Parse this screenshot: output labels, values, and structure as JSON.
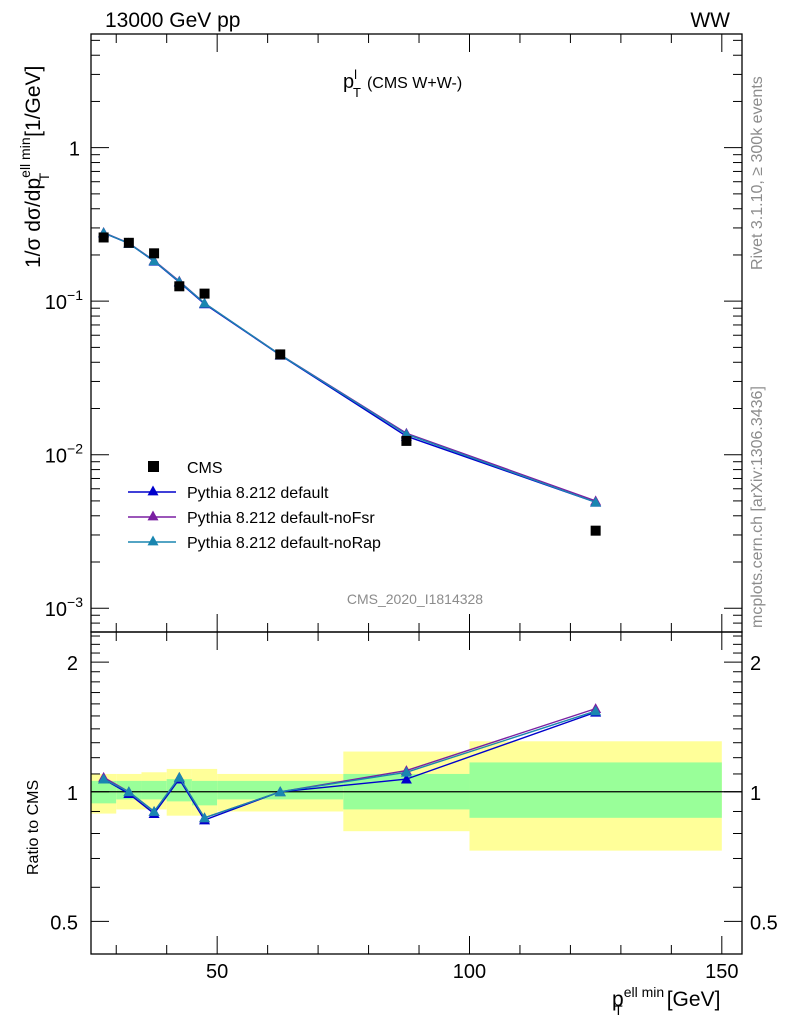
{
  "header": {
    "left": "13000 GeV pp",
    "right": "WW"
  },
  "side_labels": {
    "rivet": "Rivet 3.1.10, ≥ 300k events",
    "mcplots": "mcplots.cern.ch [arXiv:1306.3436]"
  },
  "watermark": "CMS_2020_I1814328",
  "main_title": {
    "p": "p",
    "sup": "l",
    "sub": "T",
    "rest": "(CMS W+W-)"
  },
  "y_label_top": {
    "part1": "1/σ dσ/dp",
    "sup": "ell min",
    "sub": "T",
    "units": "[1/GeV]"
  },
  "y_label_ratio": "Ratio to CMS",
  "x_label": {
    "p": "p",
    "sup": "ell min",
    "sub": "T",
    "units": "[GeV]"
  },
  "legend": [
    {
      "label": "CMS",
      "color": "#000000",
      "marker": "square"
    },
    {
      "label": "Pythia 8.212 default",
      "color": "#0000cc",
      "marker": "triangle"
    },
    {
      "label": "Pythia 8.212 default-noFsr",
      "color": "#7a1fa2",
      "marker": "triangle"
    },
    {
      "label": "Pythia 8.212 default-noRap",
      "color": "#1a86b0",
      "marker": "triangle"
    }
  ],
  "ticks": {
    "top_y": [
      {
        "value": 1,
        "label": "1"
      },
      {
        "value": 0.1,
        "label": "10",
        "exp": "−1"
      },
      {
        "value": 0.01,
        "label": "10",
        "exp": "−2"
      },
      {
        "value": 0.001,
        "label": "10",
        "exp": "−3"
      }
    ],
    "ratio_y": [
      {
        "value": 2,
        "label": "2"
      },
      {
        "value": 1,
        "label": "1"
      },
      {
        "value": 0.5,
        "label": "0.5"
      }
    ],
    "x": [
      {
        "value": 50,
        "label": "50"
      },
      {
        "value": 100,
        "label": "100"
      },
      {
        "value": 150,
        "label": "150"
      }
    ]
  },
  "chart_data": {
    "type": "scatter",
    "xlim": [
      25,
      154
    ],
    "ylim": [
      0.0007,
      5.5
    ],
    "ylog": true,
    "ratio_ylim": [
      0.42,
      2.35
    ],
    "ratio_ylog": true,
    "bins": [
      [
        25,
        30
      ],
      [
        30,
        35
      ],
      [
        35,
        40
      ],
      [
        40,
        45
      ],
      [
        45,
        50
      ],
      [
        50,
        75
      ],
      [
        75,
        100
      ],
      [
        100,
        150
      ]
    ],
    "x": [
      27.5,
      32.5,
      37.5,
      42.5,
      47.5,
      62.5,
      87.5,
      125
    ],
    "data": {
      "name": "CMS",
      "values": [
        0.26,
        0.24,
        0.205,
        0.125,
        0.112,
        0.045,
        0.0123,
        0.0032
      ]
    },
    "series": [
      {
        "name": "Pythia 8.212 default",
        "values": [
          0.278,
          0.238,
          0.182,
          0.133,
          0.096,
          0.0445,
          0.0132,
          0.0049
        ],
        "ratio": [
          1.07,
          0.99,
          0.89,
          1.07,
          0.86,
          1.0,
          1.07,
          1.53
        ]
      },
      {
        "name": "Pythia 8.212 default-noFsr",
        "values": [
          0.28,
          0.239,
          0.184,
          0.135,
          0.097,
          0.0448,
          0.0138,
          0.005
        ],
        "ratio": [
          1.08,
          1.0,
          0.9,
          1.08,
          0.87,
          1.0,
          1.12,
          1.56
        ]
      },
      {
        "name": "Pythia 8.212 default-noRap",
        "values": [
          0.279,
          0.238,
          0.183,
          0.134,
          0.097,
          0.0447,
          0.0136,
          0.0049
        ],
        "ratio": [
          1.07,
          1.0,
          0.9,
          1.08,
          0.87,
          1.0,
          1.11,
          1.54
        ]
      }
    ],
    "uncertainty_bands": {
      "inner": [
        [
          0.94,
          1.06
        ],
        [
          0.96,
          1.06
        ],
        [
          0.96,
          1.06
        ],
        [
          0.95,
          1.07
        ],
        [
          0.93,
          1.06
        ],
        [
          0.96,
          1.06
        ],
        [
          0.91,
          1.1
        ],
        [
          0.87,
          1.17
        ]
      ],
      "outer": [
        [
          0.89,
          1.1
        ],
        [
          0.91,
          1.1
        ],
        [
          0.91,
          1.11
        ],
        [
          0.88,
          1.13
        ],
        [
          0.88,
          1.13
        ],
        [
          0.9,
          1.1
        ],
        [
          0.81,
          1.24
        ],
        [
          0.73,
          1.31
        ]
      ]
    },
    "xlabel": "p_T^{ell min} [GeV]",
    "ylabel": "1/σ dσ/dp_T^{ell min} [1/GeV]",
    "ratio_ylabel": "Ratio to CMS",
    "legend_position": "lower-left"
  }
}
